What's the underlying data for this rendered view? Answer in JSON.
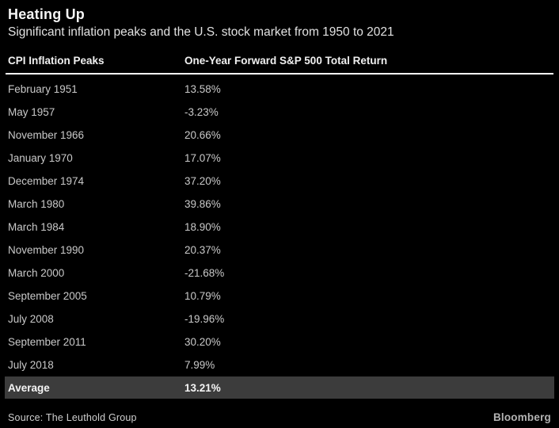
{
  "header": {
    "title": "Heating Up",
    "subtitle": "Significant inflation peaks and the U.S. stock market from 1950 to 2021"
  },
  "chart_data": {
    "type": "table",
    "title": "Heating Up",
    "subtitle": "Significant inflation peaks and the U.S. stock market from 1950 to 2021",
    "columns": [
      "CPI Inflation Peaks",
      "One-Year Forward S&P 500 Total Return"
    ],
    "rows": [
      [
        "February 1951",
        "13.58%"
      ],
      [
        "May 1957",
        "-3.23%"
      ],
      [
        "November 1966",
        "20.66%"
      ],
      [
        "January 1970",
        "17.07%"
      ],
      [
        "December 1974",
        "37.20%"
      ],
      [
        "March 1980",
        "39.86%"
      ],
      [
        "March 1984",
        "18.90%"
      ],
      [
        "November 1990",
        "20.37%"
      ],
      [
        "March 2000",
        "-21.68%"
      ],
      [
        "September 2005",
        "10.79%"
      ],
      [
        "July 2008",
        "-19.96%"
      ],
      [
        "September 2011",
        "30.20%"
      ],
      [
        "July 2018",
        "7.99%"
      ]
    ],
    "summary_row": [
      "Average",
      "13.21%"
    ],
    "values_numeric": [
      13.58,
      -3.23,
      20.66,
      17.07,
      37.2,
      39.86,
      18.9,
      20.37,
      -21.68,
      10.79,
      -19.96,
      30.2,
      7.99
    ],
    "average_numeric": 13.21
  },
  "footer": {
    "source": "Source: The Leuthold Group",
    "brand": "Bloomberg"
  },
  "colors": {
    "background": "#000000",
    "title_text": "#f5f5f5",
    "row_text": "#c9c9c9",
    "header_rule": "#ffffff",
    "average_row_bg": "#3c3c3c"
  }
}
